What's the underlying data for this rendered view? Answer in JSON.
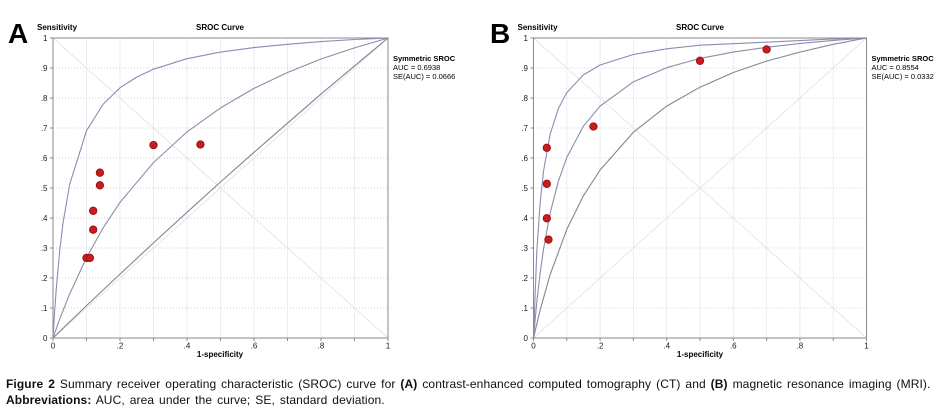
{
  "caption": {
    "fig_label": "Figure 2",
    "body_1": " Summary receiver operating characteristic (SROC) curve for ",
    "a_label": "(A)",
    "body_2": " contrast-enhanced computed tomography (CT) and ",
    "b_label": "(B)",
    "body_3": " magnetic resonance imaging (MRI).",
    "abbrev_label": "Abbreviations:",
    "abbrev_text": " AUC, area under the curve; SE, standard deviation."
  },
  "style": {
    "plot_border_color": "#8a8a8a",
    "grid_vertical_color": "#ededf1",
    "grid_horizontal_color": "#d2d2d2",
    "diagonal_color": "#e6e6e6",
    "point_fill": "#cb1b1b",
    "point_stroke": "#931111",
    "point_radius": 3.7
  },
  "chart_data": [
    {
      "panel_letter": "A",
      "type": "scatter",
      "title": "SROC Curve",
      "ylabel": "Sensitivity",
      "xlabel": "1-specificity",
      "xlim": [
        0,
        1
      ],
      "ylim": [
        0,
        1
      ],
      "grid": true,
      "x_tick_labels": [
        "0",
        ".2",
        ".4",
        ".6",
        ".8",
        "1"
      ],
      "y_tick_labels": [
        "1",
        ".9",
        ".8",
        ".7",
        ".6",
        ".5",
        ".4",
        ".3",
        ".2",
        ".1",
        "0"
      ],
      "legend": {
        "position": "right",
        "title": "Symmetric SROC",
        "lines": [
          "AUC = 0.6938",
          "SE(AUC) = 0.0666"
        ]
      },
      "points": [
        [
          0.3,
          0.643
        ],
        [
          0.44,
          0.645
        ],
        [
          0.14,
          0.551
        ],
        [
          0.14,
          0.509
        ],
        [
          0.12,
          0.424
        ],
        [
          0.12,
          0.361
        ],
        [
          0.1,
          0.267
        ],
        [
          0.11,
          0.267
        ]
      ],
      "curves": [
        {
          "name": "upper-95ci-band",
          "color": "#8c8cb4",
          "x": [
            0,
            0.005,
            0.01,
            0.02,
            0.03,
            0.05,
            0.075,
            0.1,
            0.15,
            0.2,
            0.25,
            0.3,
            0.4,
            0.5,
            0.6,
            0.7,
            0.8,
            0.9,
            1
          ],
          "y": [
            0,
            0.092,
            0.169,
            0.291,
            0.383,
            0.514,
            0.601,
            0.691,
            0.78,
            0.834,
            0.87,
            0.896,
            0.931,
            0.953,
            0.968,
            0.979,
            0.988,
            0.995,
            1
          ]
        },
        {
          "name": "sroc-curve",
          "color": "#8d8da9",
          "x": [
            0,
            0.02,
            0.05,
            0.1,
            0.15,
            0.2,
            0.3,
            0.4,
            0.5,
            0.6,
            0.7,
            0.8,
            0.9,
            1
          ],
          "y": [
            0,
            0.063,
            0.148,
            0.268,
            0.368,
            0.452,
            0.585,
            0.687,
            0.767,
            0.832,
            0.885,
            0.93,
            0.967,
            1
          ]
        },
        {
          "name": "lower-95ci-band",
          "color": "#84849a",
          "x": [
            0,
            0.1,
            0.2,
            0.3,
            0.4,
            0.5,
            0.6,
            0.7,
            0.8,
            0.9,
            1
          ],
          "y": [
            0,
            0.108,
            0.213,
            0.317,
            0.419,
            0.52,
            0.619,
            0.716,
            0.813,
            0.907,
            1
          ]
        }
      ]
    },
    {
      "panel_letter": "B",
      "type": "scatter",
      "title": "SROC Curve",
      "ylabel": "Sensitivity",
      "xlabel": "1-specificity",
      "xlim": [
        0,
        1
      ],
      "ylim": [
        0,
        1
      ],
      "grid": true,
      "x_tick_labels": [
        "0",
        ".2",
        ".4",
        ".6",
        ".8",
        "1"
      ],
      "y_tick_labels": [
        "1",
        ".9",
        ".8",
        ".7",
        ".6",
        ".5",
        ".4",
        ".3",
        ".2",
        ".1",
        "0"
      ],
      "legend": {
        "position": "right",
        "title": "Symmetric SROC",
        "lines": [
          "AUC = 0.8554",
          "SE(AUC) = 0.0332"
        ]
      },
      "points": [
        [
          0.7,
          0.962
        ],
        [
          0.5,
          0.924
        ],
        [
          0.18,
          0.705
        ],
        [
          0.04,
          0.634
        ],
        [
          0.04,
          0.514
        ],
        [
          0.04,
          0.399
        ],
        [
          0.045,
          0.328
        ]
      ],
      "curves": [
        {
          "name": "upper-95ci-band",
          "color": "#8c8cb4",
          "x": [
            0,
            0.01,
            0.02,
            0.03,
            0.05,
            0.075,
            0.1,
            0.15,
            0.2,
            0.3,
            0.4,
            0.5,
            0.7,
            0.9,
            1
          ],
          "y": [
            0,
            0.29,
            0.452,
            0.556,
            0.68,
            0.766,
            0.818,
            0.877,
            0.91,
            0.945,
            0.964,
            0.976,
            0.986,
            0.997,
            1
          ]
        },
        {
          "name": "sroc-curve",
          "color": "#8d8da9",
          "x": [
            0,
            0.01,
            0.02,
            0.03,
            0.05,
            0.075,
            0.1,
            0.15,
            0.2,
            0.3,
            0.4,
            0.5,
            0.6,
            0.7,
            0.8,
            0.9,
            1
          ],
          "y": [
            0,
            0.121,
            0.217,
            0.296,
            0.417,
            0.524,
            0.602,
            0.706,
            0.773,
            0.854,
            0.901,
            0.932,
            0.953,
            0.969,
            0.982,
            0.992,
            1
          ]
        },
        {
          "name": "lower-95ci-band",
          "color": "#84849a",
          "x": [
            0,
            0.02,
            0.05,
            0.1,
            0.15,
            0.2,
            0.3,
            0.4,
            0.5,
            0.6,
            0.7,
            0.8,
            0.9,
            1
          ],
          "y": [
            0,
            0.094,
            0.212,
            0.362,
            0.474,
            0.56,
            0.686,
            0.773,
            0.836,
            0.885,
            0.923,
            0.953,
            0.979,
            1
          ]
        }
      ]
    }
  ]
}
